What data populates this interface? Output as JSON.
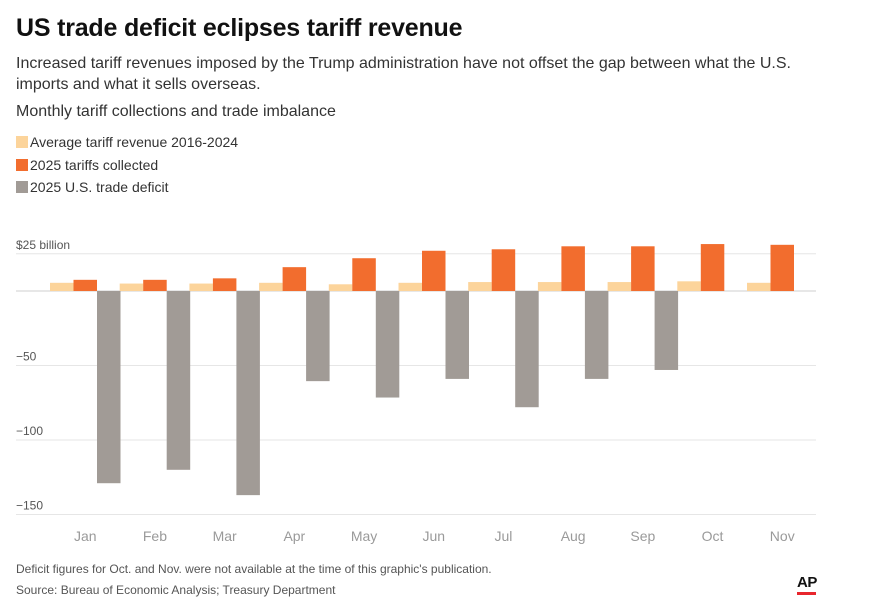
{
  "header": {
    "title": "US trade deficit eclipses tariff revenue",
    "subtitle": "Increased tariff revenues imposed by the Trump administration have not offset the gap between what the U.S. imports and what it sells overseas.",
    "section_title": "Monthly tariff collections and trade imbalance"
  },
  "legend": [
    {
      "label": "Average tariff revenue 2016-2024",
      "color": "#fcd49b"
    },
    {
      "label": "2025 tariffs collected",
      "color": "#f26d2e"
    },
    {
      "label": "2025 U.S. trade deficit",
      "color": "#a19b96"
    }
  ],
  "footer": {
    "note": "Deficit figures for Oct. and Nov. were not available at the time of this graphic's publication.",
    "source": "Source: Bureau of Economic Analysis; Treasury Department",
    "logo": "AP"
  },
  "chart_data": {
    "type": "bar",
    "categories": [
      "Jan",
      "Feb",
      "Mar",
      "Apr",
      "May",
      "Jun",
      "Jul",
      "Aug",
      "Sep",
      "Oct",
      "Nov"
    ],
    "series": [
      {
        "name": "Average tariff revenue 2016-2024",
        "color": "#fcd49b",
        "values": [
          5.5,
          5,
          5,
          5.5,
          4.5,
          5.5,
          6,
          6,
          6,
          6.5,
          5.5
        ]
      },
      {
        "name": "2025 tariffs collected",
        "color": "#f26d2e",
        "values": [
          7.5,
          7.5,
          8.5,
          16,
          22,
          27,
          28,
          30,
          30,
          31.5,
          31
        ]
      },
      {
        "name": "2025 U.S. trade deficit",
        "color": "#a19b96",
        "values": [
          -129,
          -120,
          -137,
          -60.5,
          -71.5,
          -59,
          -78,
          -59,
          -53,
          null,
          null
        ]
      }
    ],
    "y_ticks": [
      {
        "value": 25,
        "label": "$25 billion"
      },
      {
        "value": 0,
        "label": ""
      },
      {
        "value": -50,
        "label": "−50"
      },
      {
        "value": -100,
        "label": "−100"
      },
      {
        "value": -150,
        "label": "−150"
      }
    ],
    "ylim": [
      -150,
      25
    ],
    "grid": true
  }
}
